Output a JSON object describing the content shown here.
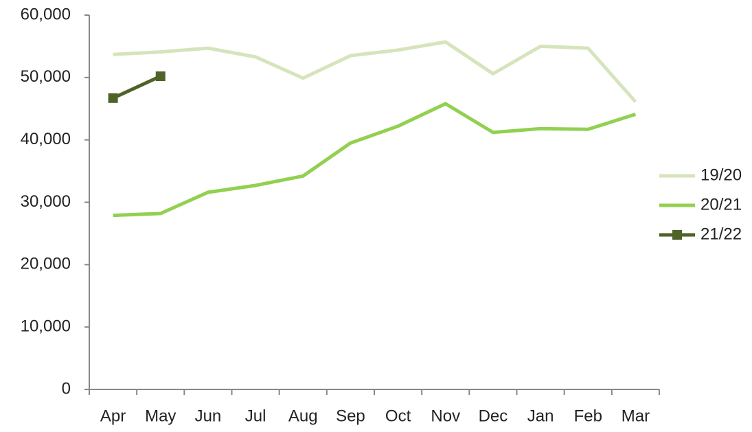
{
  "chart_data": {
    "type": "line",
    "categories": [
      "Apr",
      "May",
      "Jun",
      "Jul",
      "Aug",
      "Sep",
      "Oct",
      "Nov",
      "Dec",
      "Jan",
      "Feb",
      "Mar"
    ],
    "series": [
      {
        "name": "19/20",
        "color": "#d6e4bc",
        "values": [
          53700,
          54100,
          54700,
          53300,
          49900,
          53500,
          54400,
          55700,
          50600,
          55000,
          54700,
          46100
        ]
      },
      {
        "name": "20/21",
        "color": "#92d050",
        "values": [
          27900,
          28200,
          31600,
          32700,
          34200,
          39500,
          42200,
          45800,
          41200,
          41800,
          41700,
          44100
        ]
      },
      {
        "name": "21/22",
        "color": "#4f6228",
        "marker": "square",
        "values": [
          46700,
          50200,
          null,
          null,
          null,
          null,
          null,
          null,
          null,
          null,
          null,
          null
        ]
      }
    ],
    "ylim": [
      0,
      60000
    ],
    "yticks": [
      0,
      {
        "value": 10000,
        "label": "10,000"
      },
      {
        "value": 20000,
        "label": "20,000"
      },
      {
        "value": 30000,
        "label": "30,000"
      },
      {
        "value": 40000,
        "label": "40,000"
      },
      {
        "value": 50000,
        "label": "50,000"
      },
      {
        "value": 60000,
        "label": "60,000"
      }
    ],
    "grid": false,
    "legend": "right"
  }
}
